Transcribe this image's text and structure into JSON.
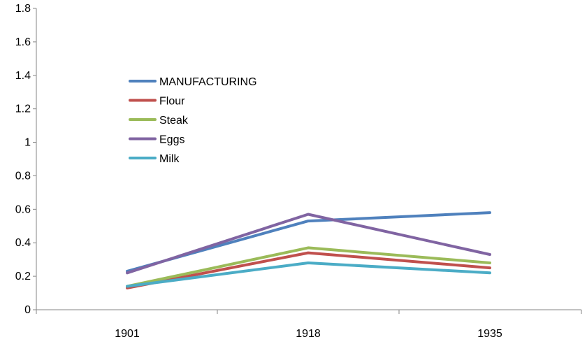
{
  "chart_data": {
    "type": "line",
    "title": "",
    "xlabel": "",
    "ylabel": "",
    "categories": [
      "1901",
      "1918",
      "1935"
    ],
    "ylim": [
      0,
      1.8
    ],
    "yticks": [
      "0",
      "0.2",
      "0.4",
      "0.6",
      "0.8",
      "1",
      "1.2",
      "1.4",
      "1.6",
      "1.8"
    ],
    "grid": false,
    "legend_position": "upper-left-inside",
    "series": [
      {
        "name": "MANUFACTURING",
        "color": "#4f81bd",
        "values": [
          0.23,
          0.53,
          0.58
        ]
      },
      {
        "name": "Flour",
        "color": "#c0504d",
        "values": [
          0.13,
          0.34,
          0.25
        ]
      },
      {
        "name": "Steak",
        "color": "#9bbb59",
        "values": [
          0.14,
          0.37,
          0.28
        ]
      },
      {
        "name": "Eggs",
        "color": "#8064a2",
        "values": [
          0.22,
          0.57,
          0.33
        ]
      },
      {
        "name": "Milk",
        "color": "#4bacc6",
        "values": [
          0.14,
          0.28,
          0.22
        ]
      }
    ]
  }
}
